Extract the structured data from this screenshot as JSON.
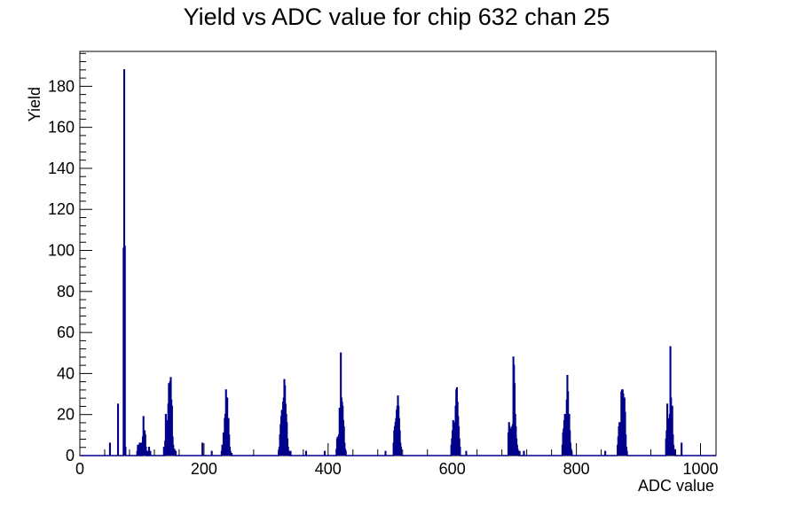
{
  "chart_data": {
    "type": "histogram",
    "title": "Yield vs ADC value for chip 632 chan 25",
    "xlabel": "ADC value",
    "ylabel": "Yield",
    "xlim": [
      0,
      1025
    ],
    "ylim": [
      0,
      197
    ],
    "x_ticks": [
      0,
      200,
      400,
      600,
      800,
      1000
    ],
    "y_ticks": [
      0,
      20,
      40,
      60,
      80,
      100,
      120,
      140,
      160,
      180
    ],
    "bin_width": 1,
    "grid": false,
    "legend": "none",
    "line_color": "#00008b",
    "bins": [
      [
        48,
        6
      ],
      [
        61,
        25
      ],
      [
        70,
        101
      ],
      [
        71,
        188
      ],
      [
        72,
        102
      ],
      [
        73,
        4
      ],
      [
        92,
        2
      ],
      [
        93,
        5
      ],
      [
        95,
        3
      ],
      [
        96,
        6
      ],
      [
        98,
        4
      ],
      [
        99,
        6
      ],
      [
        101,
        9
      ],
      [
        102,
        19
      ],
      [
        103,
        11
      ],
      [
        104,
        12
      ],
      [
        105,
        10
      ],
      [
        106,
        4
      ],
      [
        108,
        2
      ],
      [
        111,
        4
      ],
      [
        113,
        2
      ],
      [
        135,
        4
      ],
      [
        137,
        7
      ],
      [
        138,
        20
      ],
      [
        139,
        13
      ],
      [
        140,
        17
      ],
      [
        141,
        12
      ],
      [
        142,
        25
      ],
      [
        143,
        35
      ],
      [
        144,
        33
      ],
      [
        145,
        36
      ],
      [
        146,
        38
      ],
      [
        147,
        27
      ],
      [
        148,
        24
      ],
      [
        149,
        9
      ],
      [
        150,
        5
      ],
      [
        151,
        2
      ],
      [
        152,
        3
      ],
      [
        154,
        2
      ],
      [
        197,
        6
      ],
      [
        212,
        2
      ],
      [
        228,
        2
      ],
      [
        229,
        5
      ],
      [
        230,
        4
      ],
      [
        231,
        11
      ],
      [
        232,
        9
      ],
      [
        233,
        18
      ],
      [
        234,
        20
      ],
      [
        235,
        32
      ],
      [
        236,
        24
      ],
      [
        237,
        28
      ],
      [
        238,
        16
      ],
      [
        239,
        18
      ],
      [
        240,
        10
      ],
      [
        241,
        4
      ],
      [
        242,
        2
      ],
      [
        244,
        1
      ],
      [
        320,
        2
      ],
      [
        321,
        4
      ],
      [
        322,
        10
      ],
      [
        323,
        15
      ],
      [
        324,
        19
      ],
      [
        325,
        22
      ],
      [
        326,
        14
      ],
      [
        327,
        26
      ],
      [
        328,
        28
      ],
      [
        329,
        37
      ],
      [
        330,
        34
      ],
      [
        331,
        25
      ],
      [
        332,
        20
      ],
      [
        333,
        16
      ],
      [
        334,
        8
      ],
      [
        335,
        4
      ],
      [
        336,
        2
      ],
      [
        339,
        2
      ],
      [
        364,
        2
      ],
      [
        394,
        2
      ],
      [
        413,
        3
      ],
      [
        414,
        8
      ],
      [
        415,
        9
      ],
      [
        416,
        7
      ],
      [
        417,
        10
      ],
      [
        418,
        23
      ],
      [
        419,
        20
      ],
      [
        420,
        50
      ],
      [
        421,
        28
      ],
      [
        422,
        26
      ],
      [
        423,
        24
      ],
      [
        424,
        17
      ],
      [
        425,
        14
      ],
      [
        426,
        6
      ],
      [
        427,
        3
      ],
      [
        428,
        2
      ],
      [
        492,
        2
      ],
      [
        505,
        6
      ],
      [
        506,
        12
      ],
      [
        507,
        14
      ],
      [
        508,
        16
      ],
      [
        509,
        18
      ],
      [
        510,
        22
      ],
      [
        511,
        24
      ],
      [
        512,
        29
      ],
      [
        513,
        24
      ],
      [
        514,
        18
      ],
      [
        515,
        12
      ],
      [
        516,
        6
      ],
      [
        517,
        4
      ],
      [
        598,
        5
      ],
      [
        599,
        8
      ],
      [
        600,
        12
      ],
      [
        601,
        17
      ],
      [
        602,
        15
      ],
      [
        603,
        11
      ],
      [
        604,
        16
      ],
      [
        605,
        24
      ],
      [
        606,
        32
      ],
      [
        607,
        33
      ],
      [
        608,
        26
      ],
      [
        609,
        19
      ],
      [
        610,
        14
      ],
      [
        611,
        8
      ],
      [
        612,
        4
      ],
      [
        622,
        2
      ],
      [
        690,
        11
      ],
      [
        691,
        16
      ],
      [
        692,
        14
      ],
      [
        693,
        13
      ],
      [
        694,
        13
      ],
      [
        695,
        11
      ],
      [
        696,
        14
      ],
      [
        697,
        15
      ],
      [
        698,
        48
      ],
      [
        699,
        44
      ],
      [
        700,
        35
      ],
      [
        701,
        20
      ],
      [
        702,
        14
      ],
      [
        703,
        8
      ],
      [
        704,
        5
      ],
      [
        705,
        3
      ],
      [
        706,
        2
      ],
      [
        708,
        2
      ],
      [
        715,
        2
      ],
      [
        777,
        5
      ],
      [
        778,
        11
      ],
      [
        779,
        13
      ],
      [
        780,
        17
      ],
      [
        781,
        20
      ],
      [
        782,
        13
      ],
      [
        783,
        19
      ],
      [
        784,
        27
      ],
      [
        785,
        39
      ],
      [
        786,
        31
      ],
      [
        787,
        16
      ],
      [
        788,
        20
      ],
      [
        789,
        12
      ],
      [
        790,
        6
      ],
      [
        791,
        3
      ],
      [
        792,
        2
      ],
      [
        846,
        2
      ],
      [
        866,
        5
      ],
      [
        867,
        9
      ],
      [
        868,
        14
      ],
      [
        869,
        16
      ],
      [
        870,
        13
      ],
      [
        871,
        12
      ],
      [
        872,
        31
      ],
      [
        873,
        32
      ],
      [
        874,
        32
      ],
      [
        875,
        30
      ],
      [
        876,
        26
      ],
      [
        877,
        28
      ],
      [
        878,
        21
      ],
      [
        879,
        10
      ],
      [
        880,
        4
      ],
      [
        881,
        2
      ],
      [
        944,
        8
      ],
      [
        945,
        12
      ],
      [
        946,
        25
      ],
      [
        947,
        18
      ],
      [
        948,
        14
      ],
      [
        949,
        18
      ],
      [
        950,
        20
      ],
      [
        951,
        53
      ],
      [
        952,
        28
      ],
      [
        953,
        22
      ],
      [
        954,
        24
      ],
      [
        955,
        10
      ],
      [
        956,
        5
      ],
      [
        957,
        3
      ],
      [
        958,
        2
      ],
      [
        969,
        6
      ]
    ]
  }
}
